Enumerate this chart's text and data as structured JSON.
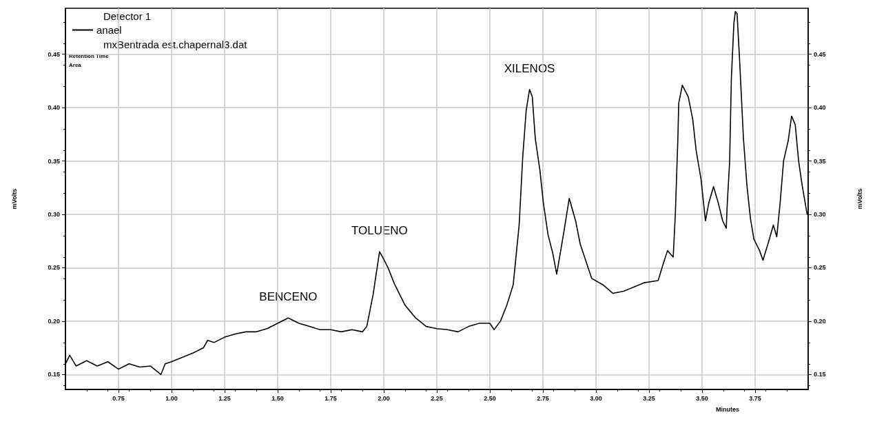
{
  "chart_data": {
    "type": "line",
    "xlabel": "Minutes",
    "ylabel": "mVolts",
    "y2label": "mVolts",
    "legend_title": "Detector 1",
    "legend": "top left",
    "grid": true,
    "marker": "none",
    "line_style": "solid",
    "xlim": [
      0.5,
      4.0
    ],
    "xticks": [
      0.75,
      {
        "value": 1,
        "label": "1.00"
      },
      1.25,
      {
        "value": 1.5,
        "label": "1.50"
      },
      1.75,
      {
        "value": 2,
        "label": "2.00"
      },
      2.25,
      {
        "value": 2.5,
        "label": "2.50"
      },
      2.75,
      {
        "value": 3,
        "label": "3.00"
      },
      3.25,
      {
        "value": 3.5,
        "label": "3.50"
      },
      3.75
    ],
    "ylim": [
      0.136,
      0.493
    ],
    "yticks": [
      0.15,
      {
        "value": 0.2,
        "label": "0.20"
      },
      0.25,
      {
        "value": 0.3,
        "label": "0.30"
      },
      0.35,
      {
        "value": 0.4,
        "label": "0.40"
      },
      0.45
    ],
    "y2lim": [
      0.136,
      0.493
    ],
    "y2ticks": [
      0.15,
      {
        "value": 0.2,
        "label": "0.20"
      },
      0.25,
      {
        "value": 0.3,
        "label": "0.30"
      },
      0.35,
      {
        "value": 0.4,
        "label": "0.40"
      },
      0.45
    ],
    "annotations": [
      "mxBentrada est.chapernal3.dat",
      "Retention Time",
      "Area",
      {
        "text": "BENCENO",
        "x": 1.55,
        "y": 0.203
      },
      {
        "text": "TOLUENO",
        "x": 1.98,
        "y": 0.265
      },
      {
        "text": "XILENOS",
        "x": 2.687,
        "y": 0.417
      }
    ],
    "series": [
      {
        "name": "anael",
        "color": "#000000",
        "x": [
          0.5,
          0.52,
          0.55,
          0.6,
          0.65,
          0.7,
          0.75,
          0.8,
          0.85,
          0.9,
          0.95,
          0.97,
          1.0,
          1.05,
          1.1,
          1.15,
          1.17,
          1.2,
          1.25,
          1.3,
          1.35,
          1.4,
          1.45,
          1.5,
          1.55,
          1.6,
          1.65,
          1.7,
          1.75,
          1.8,
          1.85,
          1.9,
          1.92,
          1.95,
          1.98,
          2.0,
          2.02,
          2.05,
          2.1,
          2.15,
          2.2,
          2.25,
          2.3,
          2.35,
          2.4,
          2.45,
          2.5,
          2.52,
          2.55,
          2.58,
          2.61,
          2.638,
          2.655,
          2.671,
          2.687,
          2.7,
          2.714,
          2.736,
          2.752,
          2.774,
          2.796,
          2.815,
          2.85,
          2.874,
          2.904,
          2.926,
          2.958,
          2.98,
          3.033,
          3.08,
          3.13,
          3.18,
          3.228,
          3.293,
          3.316,
          3.337,
          3.364,
          3.374,
          3.386,
          3.39,
          3.407,
          3.435,
          3.456,
          3.472,
          3.495,
          3.516,
          3.532,
          3.554,
          3.576,
          3.597,
          3.614,
          3.618,
          3.63,
          3.638,
          3.65,
          3.657,
          3.665,
          3.677,
          3.695,
          3.711,
          3.728,
          3.744,
          3.771,
          3.787,
          3.813,
          3.836,
          3.852,
          3.868,
          3.884,
          3.906,
          3.922,
          3.939,
          3.955,
          3.971,
          3.995
        ],
        "values": [
          0.16,
          0.168,
          0.158,
          0.163,
          0.158,
          0.162,
          0.155,
          0.16,
          0.157,
          0.158,
          0.15,
          0.16,
          0.162,
          0.166,
          0.17,
          0.175,
          0.182,
          0.18,
          0.185,
          0.188,
          0.19,
          0.19,
          0.193,
          0.198,
          0.203,
          0.198,
          0.195,
          0.192,
          0.192,
          0.19,
          0.192,
          0.19,
          0.195,
          0.225,
          0.265,
          0.258,
          0.25,
          0.235,
          0.215,
          0.203,
          0.195,
          0.193,
          0.192,
          0.19,
          0.195,
          0.198,
          0.198,
          0.192,
          0.2,
          0.215,
          0.234,
          0.29,
          0.354,
          0.397,
          0.417,
          0.41,
          0.371,
          0.341,
          0.311,
          0.281,
          0.264,
          0.244,
          0.285,
          0.315,
          0.294,
          0.272,
          0.253,
          0.24,
          0.234,
          0.226,
          0.228,
          0.232,
          0.236,
          0.238,
          0.253,
          0.266,
          0.26,
          0.3,
          0.371,
          0.404,
          0.421,
          0.41,
          0.389,
          0.36,
          0.333,
          0.294,
          0.311,
          0.326,
          0.311,
          0.294,
          0.287,
          0.307,
          0.35,
          0.427,
          0.479,
          0.49,
          0.488,
          0.444,
          0.371,
          0.328,
          0.296,
          0.277,
          0.266,
          0.257,
          0.274,
          0.29,
          0.279,
          0.311,
          0.35,
          0.369,
          0.392,
          0.384,
          0.35,
          0.328,
          0.3
        ]
      }
    ]
  }
}
